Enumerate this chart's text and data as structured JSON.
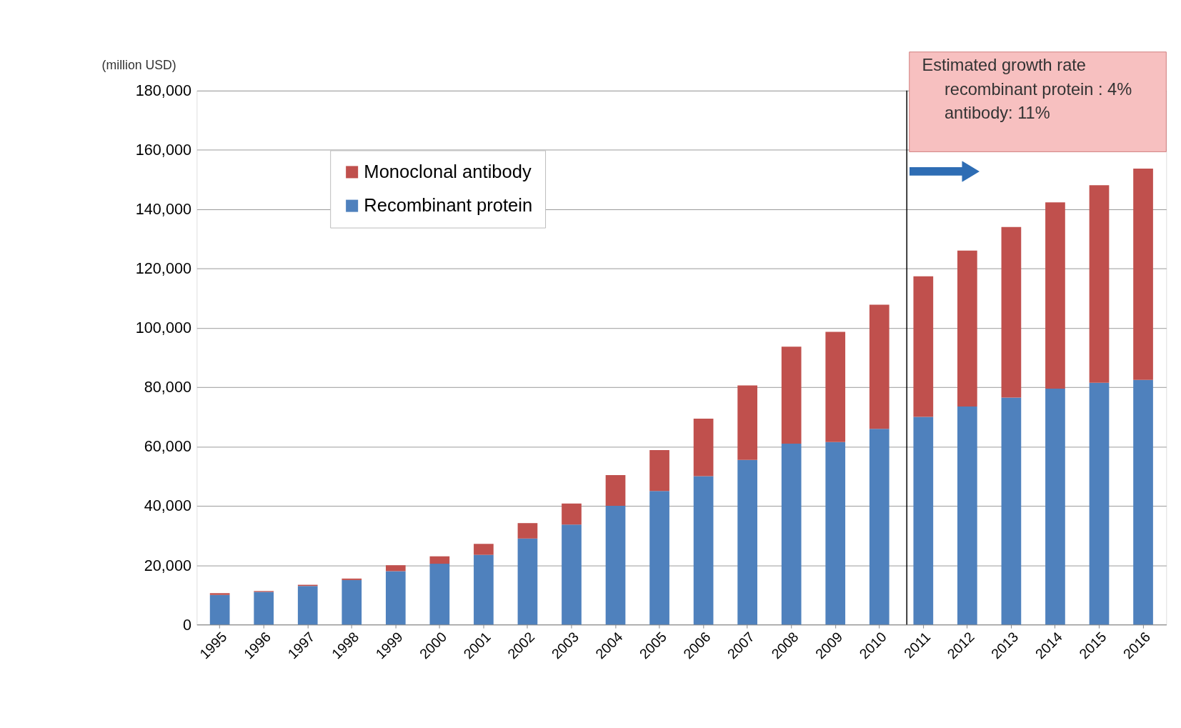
{
  "chart_data": {
    "type": "bar",
    "stacked": true,
    "ylabel": "(million USD)",
    "categories": [
      "1995",
      "1996",
      "1997",
      "1998",
      "1999",
      "2000",
      "2001",
      "2002",
      "2003",
      "2004",
      "2005",
      "2006",
      "2007",
      "2008",
      "2009",
      "2010",
      "2011",
      "2012",
      "2013",
      "2014",
      "2015",
      "2016"
    ],
    "series": [
      {
        "name": "Recombinant protein",
        "color": "#4f81bd",
        "values": [
          10000,
          11000,
          13000,
          15000,
          18000,
          20500,
          23500,
          29000,
          33700,
          40000,
          45000,
          50000,
          55500,
          61000,
          61500,
          66000,
          70000,
          73500,
          76500,
          79500,
          81500,
          82500
        ]
      },
      {
        "name": "Monoclonal antibody",
        "color": "#c0504d",
        "values": [
          600,
          300,
          400,
          500,
          2000,
          2500,
          3700,
          5200,
          7100,
          10400,
          13800,
          19400,
          25100,
          32700,
          37200,
          41800,
          47400,
          52600,
          57500,
          62800,
          66600,
          71200
        ]
      }
    ],
    "ylim": [
      0,
      180000
    ],
    "yticks": [
      0,
      {
        "value": 20000,
        "label": "20,000"
      },
      {
        "value": 40000,
        "label": "40,000"
      },
      {
        "value": 60000,
        "label": "60,000"
      },
      {
        "value": 80000,
        "label": "80,000"
      },
      {
        "value": 100000,
        "label": "100,000"
      },
      {
        "value": 120000,
        "label": "120,000"
      },
      {
        "value": 140000,
        "label": "140,000"
      },
      {
        "value": 160000,
        "label": "160,000"
      },
      {
        "value": 180000,
        "label": "180,000"
      }
    ],
    "grid": "y",
    "legend": "top left",
    "ref_lines": [
      {
        "axis": "x",
        "value": "2011",
        "color": "#000000"
      }
    ],
    "annotations": [
      "Estimated growth rate",
      "recombinant protein : 4%",
      "antibody: 11%"
    ]
  }
}
